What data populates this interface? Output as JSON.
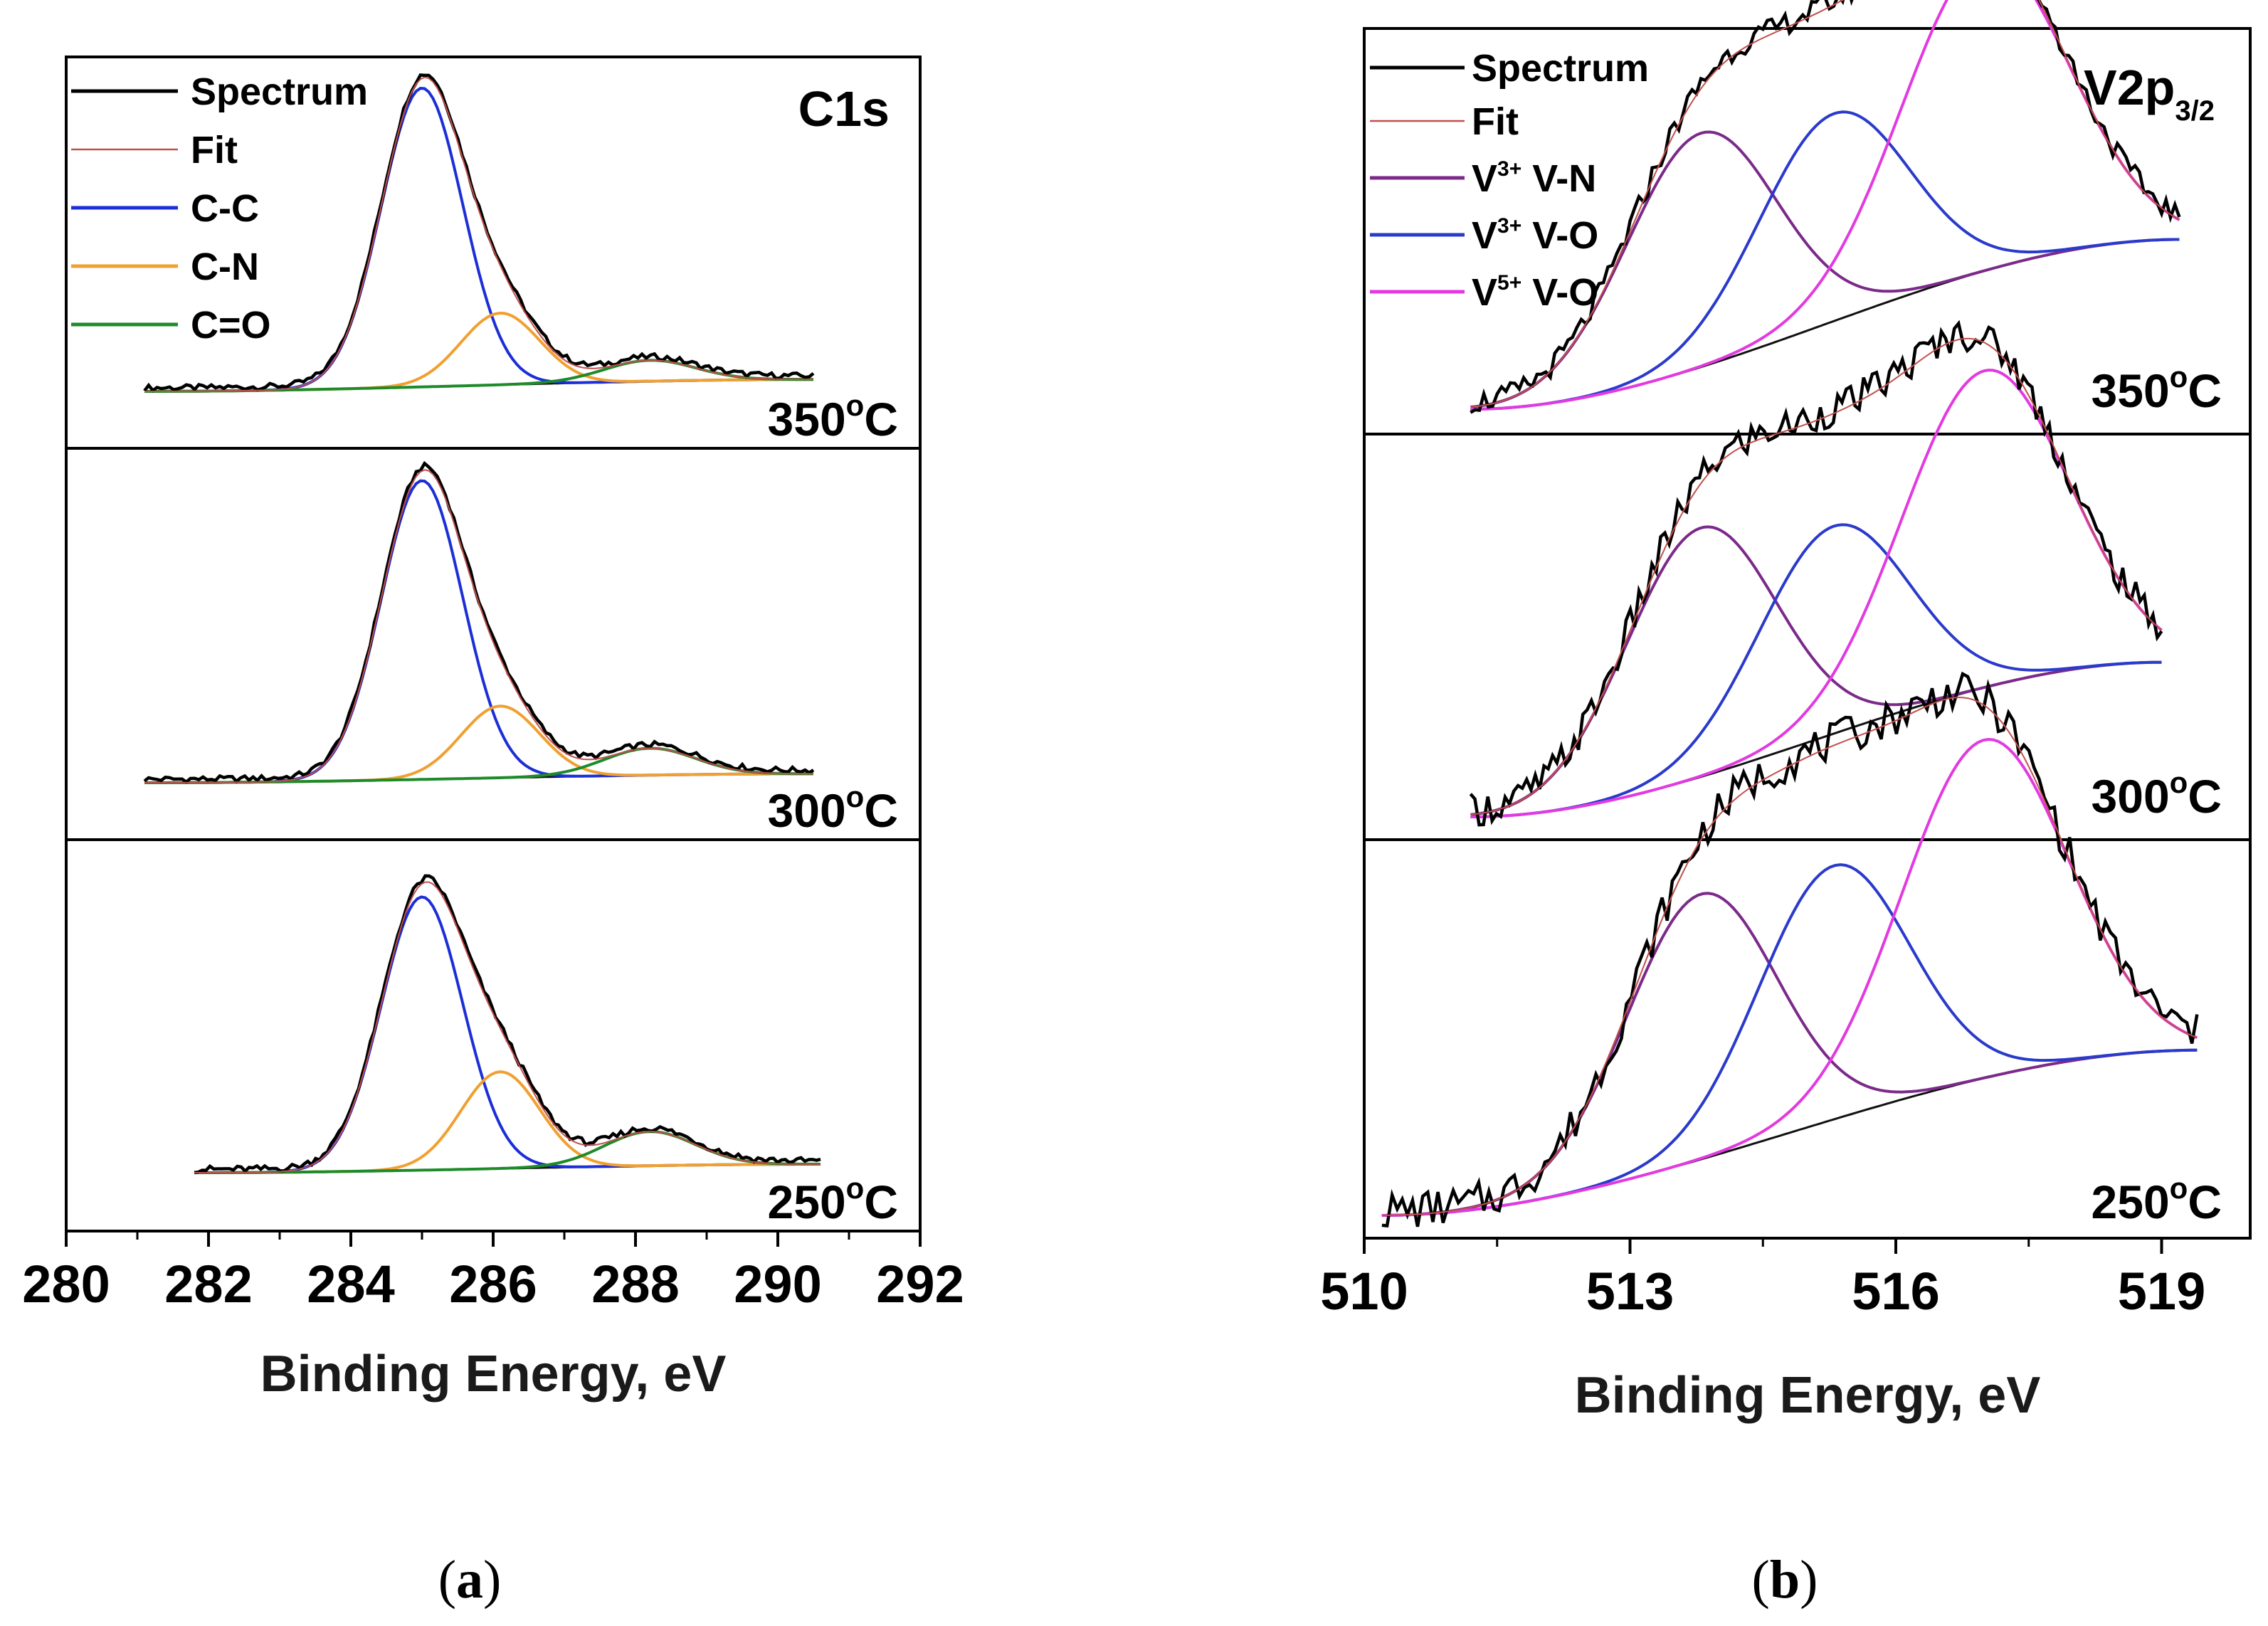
{
  "panels": [
    {
      "caption_letter": "a",
      "region_label": "C1s",
      "region_sub": "",
      "xlabel": "Binding Energy, eV",
      "x_ticks": [
        "280",
        "282",
        "284",
        "286",
        "288",
        "290",
        "292"
      ],
      "legend": [
        {
          "label": "Spectrum",
          "sup": "",
          "rest": ""
        },
        {
          "label": "Fit",
          "sup": "",
          "rest": ""
        },
        {
          "label": "C-C",
          "sup": "",
          "rest": ""
        },
        {
          "label": "C-N",
          "sup": "",
          "rest": ""
        },
        {
          "label": "C=O",
          "sup": "",
          "rest": ""
        }
      ],
      "temperatures": [
        "350",
        "300",
        "250"
      ],
      "temp_unit": "C",
      "temp_degree": "o"
    },
    {
      "caption_letter": "b",
      "region_label": "V2p",
      "region_sub": "3/2",
      "xlabel": "Binding Energy, eV",
      "x_ticks": [
        "510",
        "513",
        "516",
        "519"
      ],
      "legend": [
        {
          "label": "Spectrum",
          "sup": "",
          "rest": ""
        },
        {
          "label": "Fit",
          "sup": "",
          "rest": ""
        },
        {
          "label": "V",
          "sup": "3+",
          "rest": " V-N"
        },
        {
          "label": "V",
          "sup": "3+",
          "rest": " V-O"
        },
        {
          "label": "V",
          "sup": "5+",
          "rest": " V-O"
        }
      ],
      "temperatures": [
        "350",
        "300",
        "250"
      ],
      "temp_unit": "C",
      "temp_degree": "o"
    }
  ],
  "colors": {
    "spectrum": "#000000",
    "fit": "#c0504d",
    "cc": "#1c2fd6",
    "cn": "#f0a030",
    "co": "#1e8a2a",
    "background": "#111111",
    "v3n": "#7b2a8a",
    "v3o": "#2a3acb",
    "v5o": "#e23ae0"
  },
  "chart_data": [
    {
      "type": "line",
      "title": "C1s",
      "xlabel": "Binding Energy, eV",
      "ylabel": "",
      "xlim": [
        280,
        292
      ],
      "x_ticks": [
        280,
        282,
        284,
        286,
        288,
        290,
        292
      ],
      "legend": [
        "Spectrum",
        "Fit",
        "C-C",
        "C-N",
        "C=O"
      ],
      "legend_position": "top-left",
      "components": [
        {
          "name": "C-C",
          "center_eV": 285.0,
          "fwhm_eV": 1.35
        },
        {
          "name": "C-N",
          "center_eV": 286.1,
          "fwhm_eV": 1.3
        },
        {
          "name": "C=O",
          "center_eV": 288.2,
          "fwhm_eV": 1.5
        }
      ],
      "subplots": [
        {
          "temperature": "350°C",
          "x_range": [
            281.1,
            290.5
          ],
          "background_range": [
            0.0,
            0.04
          ],
          "amplitudes": {
            "C-C": 1.0,
            "C-N": 0.24,
            "C=O": 0.07
          }
        },
        {
          "temperature": "300°C",
          "x_range": [
            281.1,
            290.5
          ],
          "background_range": [
            0.0,
            0.03
          ],
          "amplitudes": {
            "C-C": 1.0,
            "C-N": 0.24,
            "C=O": 0.09
          }
        },
        {
          "temperature": "250°C",
          "x_range": [
            281.8,
            290.6
          ],
          "background_range": [
            0.0,
            0.03
          ],
          "amplitudes": {
            "C-C": 0.96,
            "C-N": 0.34,
            "C=O": 0.12
          }
        }
      ]
    },
    {
      "type": "line",
      "title": "V2p3/2",
      "xlabel": "Binding Energy, eV",
      "ylabel": "",
      "xlim": [
        510,
        520
      ],
      "x_ticks": [
        510,
        513,
        516,
        519
      ],
      "legend": [
        "Spectrum",
        "Fit",
        "V3+ V-N",
        "V3+ V-O",
        "V5+ V-O"
      ],
      "legend_position": "top-left",
      "components": [
        {
          "name": "V3+ V-N",
          "center_eV": 513.8,
          "fwhm_eV": 2.0
        },
        {
          "name": "V3+ V-O",
          "center_eV": 515.3,
          "fwhm_eV": 2.0
        },
        {
          "name": "V5+ V-O",
          "center_eV": 517.0,
          "fwhm_eV": 2.2
        }
      ],
      "subplots": [
        {
          "temperature": "350°C",
          "x_range": [
            511.2,
            519.2
          ],
          "background_range": [
            0.0,
            0.45
          ],
          "amplitudes": {
            "V3+ V-N": 0.62,
            "V3+ V-O": 0.55,
            "V5+ V-O": 0.83
          }
        },
        {
          "temperature": "300°C",
          "x_range": [
            511.2,
            519.0
          ],
          "background_range": [
            0.0,
            0.41
          ],
          "amplitudes": {
            "V3+ V-N": 0.66,
            "V3+ V-O": 0.55,
            "V5+ V-O": 0.84
          }
        },
        {
          "temperature": "250°C",
          "x_range": [
            510.2,
            519.4
          ],
          "background_range": [
            0.0,
            0.43
          ],
          "amplitudes": {
            "V3+ V-N": 0.69,
            "V3+ V-O": 0.66,
            "V5+ V-O": 0.88
          }
        }
      ]
    }
  ]
}
